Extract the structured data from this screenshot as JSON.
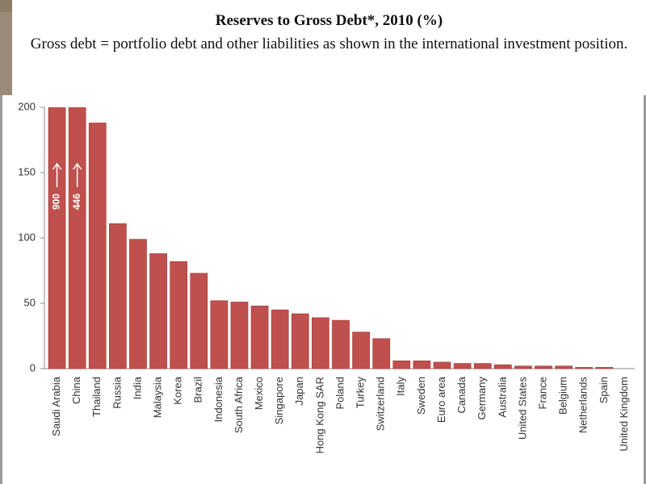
{
  "chart_data": {
    "type": "bar",
    "title": "Reserves to Gross Debt*, 2010 (%)",
    "subtitle": "Gross debt = portfolio debt and other liabilities as shown in the international investment position.",
    "categories": [
      "Saudi Arabia",
      "China",
      "Thailand",
      "Russia",
      "India",
      "Malaysia",
      "Korea",
      "Brazil",
      "Indonesia",
      "South Africa",
      "Mexico",
      "Singapore",
      "Japan",
      "Hong Kong SAR",
      "Poland",
      "Turkey",
      "Switzerland",
      "Italy",
      "Sweden",
      "Euro area",
      "Canada",
      "Germany",
      "Australia",
      "United States",
      "France",
      "Belgium",
      "Netherlands",
      "Spain",
      "United Kingdom"
    ],
    "values": [
      900,
      446,
      188,
      111,
      99,
      88,
      82,
      73,
      52,
      51,
      48,
      45,
      42,
      39,
      37,
      28,
      23,
      6,
      6,
      5,
      4,
      4,
      3,
      2,
      2,
      2,
      1,
      1,
      0
    ],
    "value_labels": [
      "900",
      "446",
      null,
      null,
      null,
      null,
      null,
      null,
      null,
      null,
      null,
      null,
      null,
      null,
      null,
      null,
      null,
      null,
      null,
      null,
      null,
      null,
      null,
      null,
      null,
      null,
      null,
      null,
      null
    ],
    "color": "#c0504d",
    "ylim": [
      0,
      200
    ],
    "yticks": [
      0,
      50,
      100,
      150,
      200
    ],
    "grid": false
  }
}
